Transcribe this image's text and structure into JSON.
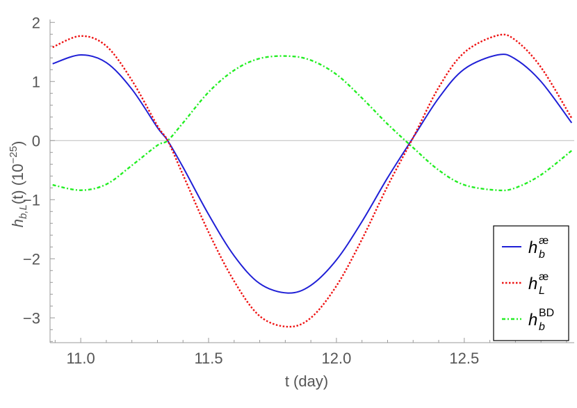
{
  "chart_data": {
    "type": "line",
    "xlabel": "t (day)",
    "ylabel": {
      "base": "h",
      "subscript": "b,L",
      "suffix": "(t) (10",
      "exponent": "−25",
      "close": ")"
    },
    "xlim": [
      10.88,
      12.93
    ],
    "ylim": [
      -3.42,
      2.05
    ],
    "x_ticks": [
      11.0,
      11.5,
      12.0,
      12.5
    ],
    "x_tick_labels": [
      "11.0",
      "11.5",
      "12.0",
      "12.5"
    ],
    "y_ticks": [
      -3,
      -2,
      -1,
      0,
      1,
      2
    ],
    "y_tick_labels": [
      "−3",
      "−2",
      "−1",
      "0",
      "1",
      "2"
    ],
    "grid": false,
    "zero_line": true,
    "legend_position": "bottom-right",
    "series": [
      {
        "name": "h_b^æ",
        "legend": {
          "base": "h",
          "sub": "b",
          "sup": "æ"
        },
        "color": "#1f1fd6",
        "style": "solid",
        "x": [
          10.89,
          11.0,
          11.1,
          11.2,
          11.3,
          11.34,
          11.4,
          11.5,
          11.6,
          11.7,
          11.81,
          11.9,
          12.0,
          12.1,
          12.2,
          12.3,
          12.4,
          12.5,
          12.63,
          12.7,
          12.8,
          12.92
        ],
        "y": [
          1.3,
          1.45,
          1.32,
          0.87,
          0.22,
          0.0,
          -0.45,
          -1.25,
          -1.95,
          -2.42,
          -2.58,
          -2.45,
          -2.02,
          -1.37,
          -0.63,
          0.05,
          0.72,
          1.21,
          1.45,
          1.38,
          1.0,
          0.3
        ]
      },
      {
        "name": "h_L^æ",
        "legend": {
          "base": "h",
          "sub": "L",
          "sup": "æ"
        },
        "color": "#ee1111",
        "style": "dotted",
        "x": [
          10.89,
          11.0,
          11.1,
          11.2,
          11.3,
          11.34,
          11.4,
          11.5,
          11.6,
          11.7,
          11.81,
          11.9,
          12.0,
          12.1,
          12.2,
          12.3,
          12.4,
          12.5,
          12.63,
          12.7,
          12.8,
          12.92
        ],
        "y": [
          1.58,
          1.77,
          1.6,
          1.02,
          0.25,
          0.0,
          -0.58,
          -1.55,
          -2.38,
          -2.97,
          -3.15,
          -3.0,
          -2.46,
          -1.67,
          -0.77,
          0.05,
          0.9,
          1.49,
          1.78,
          1.7,
          1.24,
          0.38
        ]
      },
      {
        "name": "h_b^BD",
        "legend": {
          "base": "h",
          "sub": "b",
          "sup": "BD"
        },
        "color": "#22ee22",
        "style": "dashdot",
        "x": [
          10.89,
          11.0,
          11.1,
          11.2,
          11.3,
          11.34,
          11.4,
          11.5,
          11.6,
          11.7,
          11.81,
          11.9,
          12.0,
          12.1,
          12.2,
          12.3,
          12.4,
          12.5,
          12.63,
          12.7,
          12.8,
          12.92
        ],
        "y": [
          -0.75,
          -0.84,
          -0.74,
          -0.42,
          -0.08,
          0.0,
          0.3,
          0.82,
          1.19,
          1.39,
          1.43,
          1.36,
          1.12,
          0.72,
          0.28,
          -0.12,
          -0.5,
          -0.75,
          -0.84,
          -0.8,
          -0.58,
          -0.17
        ]
      }
    ]
  }
}
